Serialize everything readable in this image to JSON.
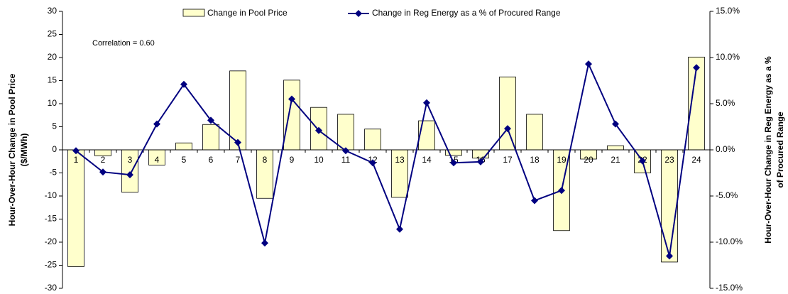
{
  "chart_data": {
    "type": "bar_line",
    "annotation": "Correlation = 0.60",
    "y_label": [
      "Hour-Over-Hour Change in Pool Price",
      "($/MWh)"
    ],
    "y2_label": [
      "Hour-Over-Hour Change in Reg Energy as a %",
      "of Procured Range"
    ],
    "categories": [
      "1",
      "2",
      "3",
      "4",
      "5",
      "6",
      "7",
      "8",
      "9",
      "10",
      "11",
      "12",
      "13",
      "14",
      "15",
      "16",
      "17",
      "18",
      "19",
      "20",
      "21",
      "22",
      "23",
      "24"
    ],
    "series": [
      {
        "name": "Change in Pool Price",
        "type": "bar",
        "color": "#ffffcc",
        "values": [
          -25.3,
          -1.3,
          -9.2,
          -3.3,
          1.5,
          5.5,
          17.1,
          -10.5,
          15.1,
          9.2,
          7.7,
          4.5,
          -10.3,
          6.3,
          -1.2,
          -1.8,
          15.8,
          7.7,
          -17.5,
          -2.0,
          0.9,
          -5.0,
          -24.3,
          20.1
        ]
      },
      {
        "name": "Change in Reg Energy as a % of Procured Range",
        "type": "line",
        "axis": "y2",
        "color": "#000080",
        "values": [
          -0.1,
          -2.4,
          -2.7,
          2.8,
          7.1,
          3.2,
          0.8,
          -10.1,
          5.5,
          2.1,
          -0.1,
          -1.4,
          -8.6,
          5.1,
          -1.4,
          -1.3,
          2.3,
          -5.5,
          -4.4,
          9.3,
          2.8,
          -1.2,
          -11.5,
          8.9
        ]
      }
    ],
    "ylim": [
      -30,
      30
    ],
    "yticks": [
      -30,
      -25,
      -20,
      -15,
      -10,
      -5,
      0,
      5,
      10,
      15,
      20,
      25,
      30
    ],
    "y2lim": [
      -15,
      15
    ],
    "y2ticks": [
      {
        "value": -15,
        "label": "-15.0%"
      },
      {
        "value": -10,
        "label": "-10.0%"
      },
      {
        "value": -5,
        "label": "-5.0%"
      },
      {
        "value": 0,
        "label": "0.0%"
      },
      {
        "value": 5,
        "label": "5.0%"
      },
      {
        "value": 10,
        "label": "10.0%"
      },
      {
        "value": 15,
        "label": "15.0%"
      }
    ],
    "grid": false,
    "legend": "top"
  }
}
